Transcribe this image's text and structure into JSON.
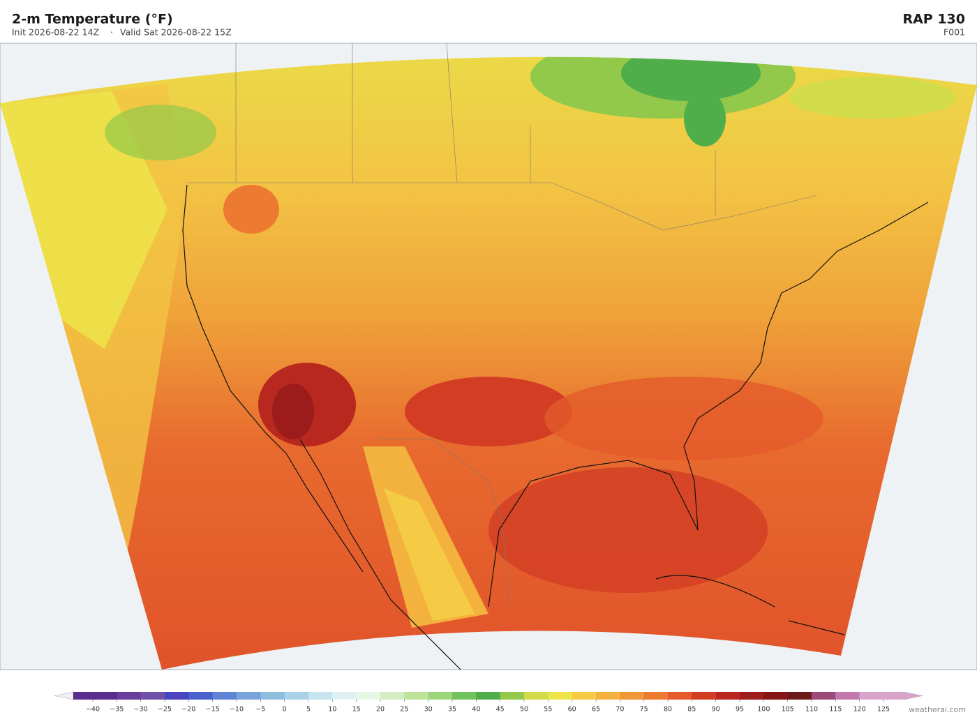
{
  "header": {
    "title": "2-m Temperature  (°F)",
    "init": "Init 2026-08-22 14Z",
    "separator": "·",
    "valid": "Valid Sat 2026-08-22 15Z",
    "model": "RAP  130",
    "forecast_hour": "F001"
  },
  "colorbar": {
    "ticks": [
      {
        "value": -40,
        "label": "−40"
      },
      {
        "value": -35,
        "label": "−35"
      },
      {
        "value": -30,
        "label": "−30"
      },
      {
        "value": -25,
        "label": "−25"
      },
      {
        "value": -20,
        "label": "−20"
      },
      {
        "value": -15,
        "label": "−15"
      },
      {
        "value": -10,
        "label": "−10"
      },
      {
        "value": -5,
        "label": "−5"
      },
      0,
      5,
      10,
      15,
      20,
      25,
      30,
      35,
      40,
      45,
      50,
      55,
      60,
      65,
      70,
      75,
      80,
      85,
      90,
      95,
      100,
      105,
      110,
      115,
      120,
      125
    ],
    "colors": [
      "#5b2d8e",
      "#6a3d9a",
      "#7050a8",
      "#4a44c0",
      "#4a60cc",
      "#5f85d4",
      "#7aa3dc",
      "#8fbde0",
      "#a9d2e8",
      "#c5e4f0",
      "#dff0f3",
      "#e8f6e6",
      "#d3ecc4",
      "#bde39a",
      "#9dd57a",
      "#72c25d",
      "#4fae4a",
      "#93c94a",
      "#d2dc4a",
      "#ede44a",
      "#f5cb45",
      "#f3b23e",
      "#ef9636",
      "#ec7a31",
      "#e45a2b",
      "#d23d24",
      "#b8281f",
      "#9c1c1c",
      "#861515",
      "#6e1a1a",
      "#9b4a7a",
      "#c07aad",
      "#d9a4cc"
    ]
  },
  "credit": "weatherai.com"
}
